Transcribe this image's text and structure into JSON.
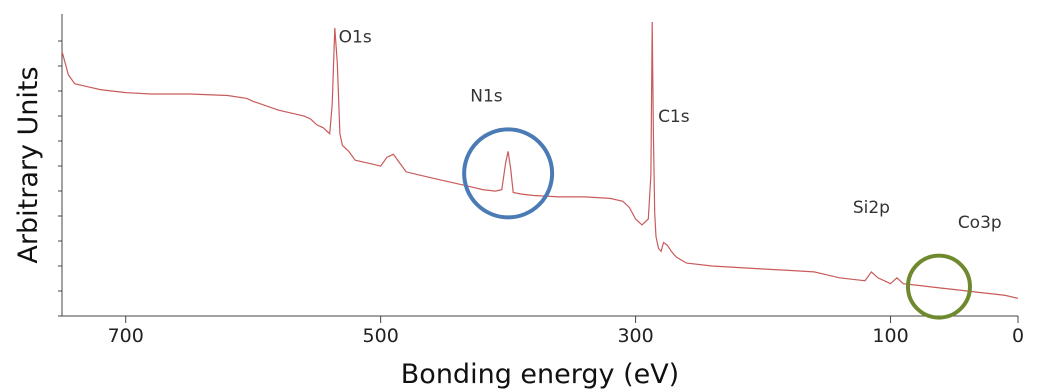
{
  "colors": {
    "spectrum": "#c95b5b",
    "axis": "#444444",
    "n1s_circle": "#4a7bb5",
    "co3p_circle": "#6f8a2e"
  },
  "chart_data": {
    "type": "line",
    "xlabel": "Bonding energy (eV)",
    "ylabel": "Arbitrary Units",
    "xlim": [
      750,
      0
    ],
    "ylim": [
      0,
      1
    ],
    "x_reversed": true,
    "grid": false,
    "xticks": [
      700,
      500,
      300,
      100,
      0
    ],
    "xtick_labels": [
      "700",
      "500",
      "300",
      "100",
      "0"
    ],
    "series": [
      {
        "x": [
          750,
          745,
          740,
          730,
          720,
          700,
          680,
          650,
          620,
          605,
          600,
          580,
          560,
          555,
          550,
          545,
          540,
          538,
          536,
          534,
          532,
          530,
          525,
          520,
          510,
          500,
          495,
          490,
          485,
          480,
          470,
          450,
          430,
          420,
          410,
          405,
          402,
          400,
          398,
          396,
          390,
          380,
          360,
          340,
          320,
          310,
          305,
          300,
          295,
          290,
          288,
          287,
          286,
          285,
          284,
          282,
          280,
          278,
          275,
          272,
          268,
          260,
          240,
          220,
          200,
          180,
          160,
          150,
          140,
          130,
          120,
          115,
          110,
          105,
          100,
          95,
          90,
          80,
          70,
          60,
          50,
          40,
          30,
          20,
          10,
          0
        ],
        "y": [
          0.9,
          0.82,
          0.79,
          0.78,
          0.77,
          0.76,
          0.755,
          0.755,
          0.75,
          0.74,
          0.73,
          0.7,
          0.68,
          0.67,
          0.65,
          0.64,
          0.62,
          0.72,
          0.98,
          0.86,
          0.62,
          0.58,
          0.56,
          0.53,
          0.52,
          0.51,
          0.54,
          0.55,
          0.52,
          0.49,
          0.48,
          0.46,
          0.44,
          0.43,
          0.425,
          0.43,
          0.52,
          0.56,
          0.5,
          0.42,
          0.415,
          0.41,
          0.405,
          0.405,
          0.4,
          0.39,
          0.37,
          0.33,
          0.31,
          0.33,
          0.48,
          1.0,
          0.62,
          0.35,
          0.27,
          0.23,
          0.22,
          0.25,
          0.24,
          0.22,
          0.2,
          0.18,
          0.17,
          0.165,
          0.16,
          0.155,
          0.15,
          0.14,
          0.13,
          0.125,
          0.12,
          0.15,
          0.13,
          0.12,
          0.11,
          0.13,
          0.11,
          0.105,
          0.1,
          0.095,
          0.09,
          0.085,
          0.08,
          0.075,
          0.07,
          0.06
        ]
      }
    ],
    "annotations": [
      {
        "text": "O1s",
        "x": 520,
        "y": 0.93
      },
      {
        "text": "N1s",
        "x": 417,
        "y": 0.73
      },
      {
        "text": "C1s",
        "x": 270,
        "y": 0.66
      },
      {
        "text": "Si2p",
        "x": 115,
        "y": 0.35
      },
      {
        "text": "Co3p",
        "x": 30,
        "y": 0.3
      }
    ],
    "highlights": [
      {
        "target": "N1s",
        "x": 400,
        "y": 0.485,
        "color": "n1s_circle"
      },
      {
        "target": "Co3p",
        "x": 62,
        "y": 0.1,
        "color": "co3p_circle"
      }
    ]
  }
}
